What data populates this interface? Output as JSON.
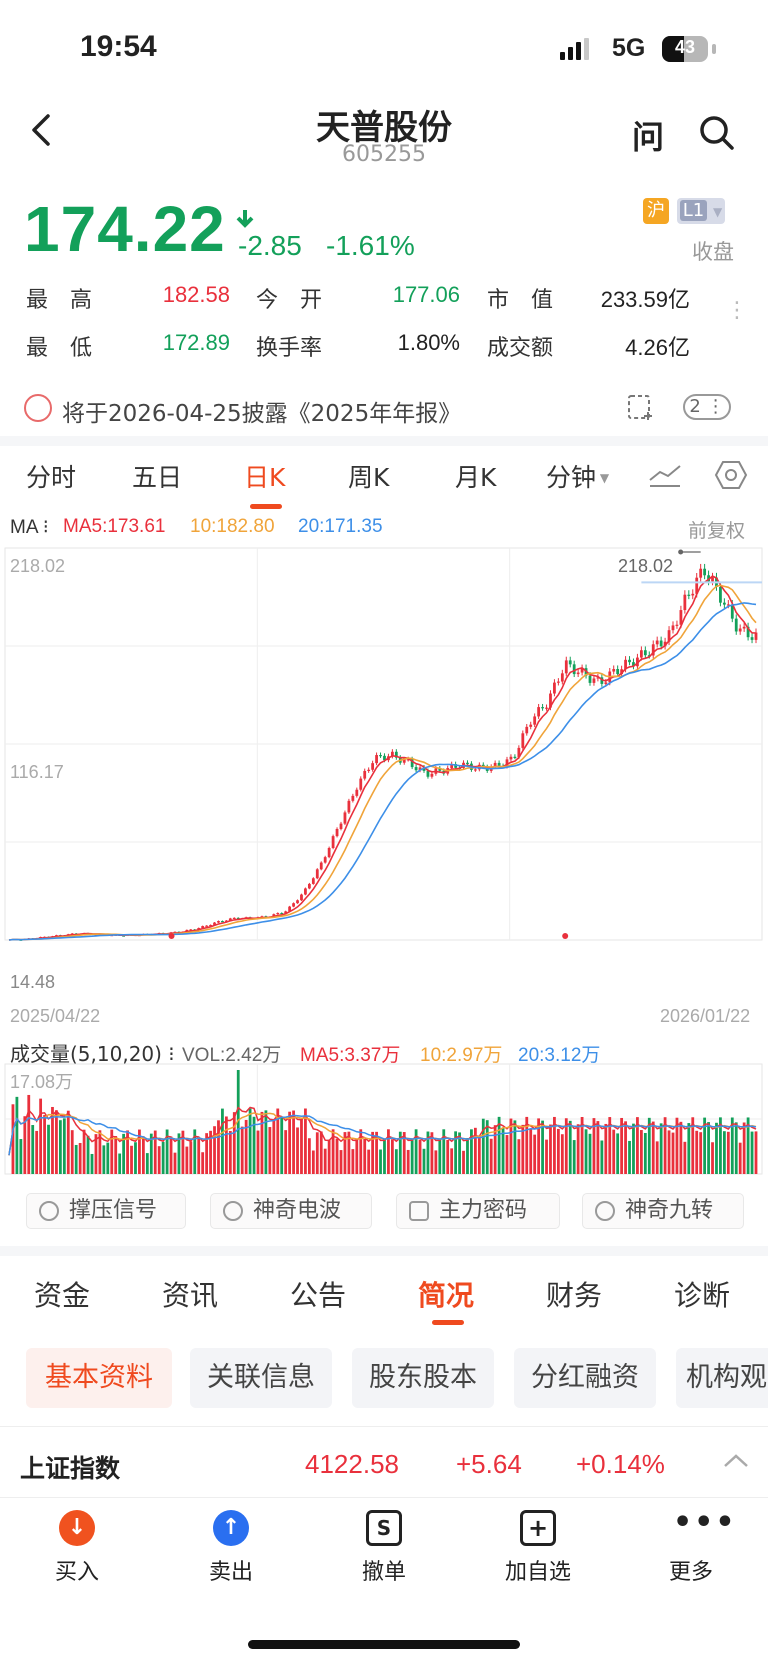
{
  "status": {
    "time": "19:54",
    "network": "5G",
    "battery": "43"
  },
  "header": {
    "title": "天普股份",
    "code": "605255",
    "ask_label": "问"
  },
  "quote": {
    "price": "174.22",
    "change": "-2.85",
    "change_pct": "-1.61%",
    "market_tag": "沪",
    "level_tag": "L1",
    "status": "收盘"
  },
  "stats": [
    {
      "label": "最　高",
      "value": "182.58",
      "color": "#e9303c"
    },
    {
      "label": "今　开",
      "value": "177.06",
      "color": "#13a05a"
    },
    {
      "label": "市　值",
      "value": "233.59亿",
      "color": "#222222"
    },
    {
      "label": "最　低",
      "value": "172.89",
      "color": "#13a05a"
    },
    {
      "label": "换手率",
      "value": "1.80%",
      "color": "#222222"
    },
    {
      "label": "成交额",
      "value": "4.26亿",
      "color": "#222222"
    }
  ],
  "notice": {
    "text": "将于2026-04-25披露《2025年年报》",
    "badge": "2"
  },
  "chart_tabs": [
    "分时",
    "五日",
    "日K",
    "周K",
    "月K",
    "分钟"
  ],
  "chart_tabs_active": "日K",
  "ma": {
    "label": "MA",
    "ma5": "MA5:173.61",
    "ma10": "10:182.80",
    "ma20": "20:171.35",
    "adjust": "前复权"
  },
  "kline_axis": {
    "top": "218.02",
    "mid": "116.17",
    "bottom": "14.48",
    "peak_label": "218.02",
    "start_date": "2025/04/22",
    "end_date": "2026/01/22"
  },
  "volume": {
    "title": "成交量(5,10,20)",
    "vol": "VOL:2.42万",
    "ma5": "MA5:3.37万",
    "ma10": "10:2.97万",
    "ma20": "20:3.12万",
    "max": "17.08万"
  },
  "signals": [
    "撑压信号",
    "神奇电波",
    "主力密码",
    "神奇九转"
  ],
  "news_tabs": [
    "资金",
    "资讯",
    "公告",
    "简况",
    "财务",
    "诊断"
  ],
  "news_tabs_active": "简况",
  "sub_tabs": [
    "基本资料",
    "关联信息",
    "股东股本",
    "分红融资",
    "机构观"
  ],
  "index_bar": {
    "name": "上证指数",
    "value": "4122.58",
    "change": "+5.64",
    "pct": "+0.14%"
  },
  "bottom_nav": [
    "买入",
    "卖出",
    "撤单",
    "加自选",
    "更多"
  ],
  "colors": {
    "up": "#e9303c",
    "down": "#13a05a",
    "ma5": "#e9303c",
    "ma10": "#f0a43a",
    "ma20": "#3d8fe8",
    "accent": "#ef4a1f"
  },
  "chart_data": {
    "type": "candlestick",
    "x_range": [
      "2025/04/22",
      "2026/01/22"
    ],
    "ylim": [
      14.48,
      218.02
    ],
    "close_trend": [
      14.5,
      15,
      16,
      17,
      18,
      17.5,
      17,
      17,
      17.5,
      18,
      19,
      21,
      24,
      26,
      26,
      27,
      30,
      40,
      55,
      75,
      95,
      110,
      112,
      108,
      102,
      104,
      107,
      105,
      106,
      110,
      130,
      140,
      160,
      155,
      150,
      157,
      162,
      168,
      175,
      195,
      210,
      195,
      178,
      174.22
    ],
    "ma_last": {
      "ma5": 173.61,
      "ma10": 182.8,
      "ma20": 171.35
    },
    "volume_max": "17.08万"
  }
}
